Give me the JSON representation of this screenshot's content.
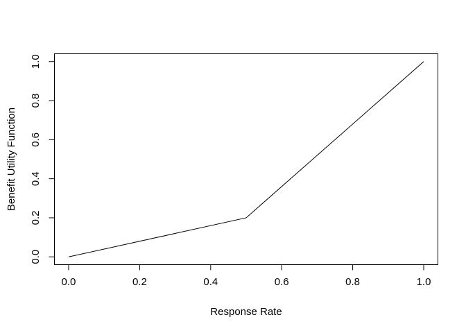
{
  "figure": {
    "background": "#ffffff",
    "foreground": "#000000"
  },
  "chart_data": {
    "type": "line",
    "xlabel": "Response Rate",
    "ylabel": "Benefit Utility Function",
    "x": [
      0.0,
      0.5,
      1.0
    ],
    "y": [
      0.0,
      0.2,
      1.0
    ],
    "xlim": [
      0.0,
      1.0
    ],
    "ylim": [
      0.0,
      1.0
    ],
    "x_ticks": [
      {
        "value": 0.0,
        "label": "0.0"
      },
      {
        "value": 0.2,
        "label": "0.2"
      },
      {
        "value": 0.4,
        "label": "0.4"
      },
      {
        "value": 0.6,
        "label": "0.6"
      },
      {
        "value": 0.8,
        "label": "0.8"
      },
      {
        "value": 1.0,
        "label": "1.0"
      }
    ],
    "y_ticks": [
      {
        "value": 0.0,
        "label": "0.0"
      },
      {
        "value": 0.2,
        "label": "0.2"
      },
      {
        "value": 0.4,
        "label": "0.4"
      },
      {
        "value": 0.6,
        "label": "0.6"
      },
      {
        "value": 0.8,
        "label": "0.8"
      },
      {
        "value": 1.0,
        "label": "1.0"
      }
    ],
    "grid": "off",
    "legend": "none",
    "line_color": "#000000",
    "axis_color": "#000000",
    "text_color": "#000000",
    "line_width": 1
  }
}
